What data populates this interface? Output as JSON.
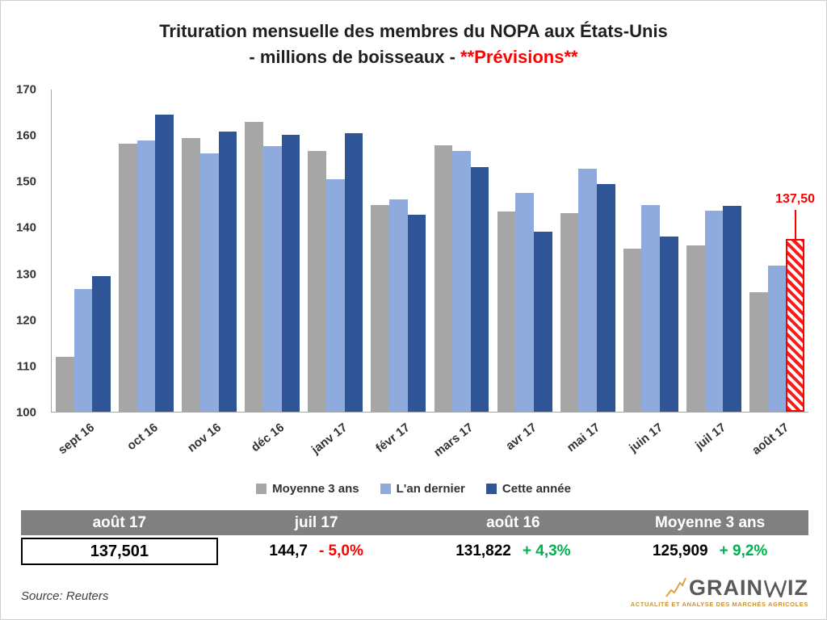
{
  "title": {
    "line1": "Trituration mensuelle des membres du NOPA aux États-Unis",
    "line2_prefix": "- millions de boisseaux - ",
    "line2_highlight": "**Prévisions**",
    "highlight_color": "#ff0000"
  },
  "chart_data": {
    "type": "bar",
    "title": "Trituration mensuelle des membres du NOPA aux États-Unis - millions de boisseaux - **Prévisions**",
    "categories": [
      "sept 16",
      "oct 16",
      "nov 16",
      "déc 16",
      "janv 17",
      "févr 17",
      "mars 17",
      "avr 17",
      "mai 17",
      "juin 17",
      "juil 17",
      "août 17"
    ],
    "series": [
      {
        "name": "Moyenne 3 ans",
        "color": "#a6a6a6",
        "values": [
          111.9,
          158.2,
          159.4,
          162.9,
          156.6,
          145.0,
          157.9,
          143.5,
          143.2,
          135.4,
          136.1,
          125.9
        ]
      },
      {
        "name": "L'an dernier",
        "color": "#8faadc",
        "values": [
          126.7,
          158.9,
          156.1,
          157.7,
          150.5,
          146.2,
          156.7,
          147.6,
          152.8,
          145.0,
          143.6,
          131.8
        ]
      },
      {
        "name": "Cette année",
        "color": "#2f5597",
        "values": [
          129.4,
          164.6,
          160.8,
          160.2,
          160.6,
          142.8,
          153.1,
          139.1,
          149.4,
          138.1,
          144.7,
          137.5
        ]
      }
    ],
    "forecast": {
      "series": "Cette année",
      "category": "août 17",
      "label": "137,50",
      "color": "#ff0000"
    },
    "ylim": [
      100,
      170
    ],
    "yticks": [
      100,
      110,
      120,
      130,
      140,
      150,
      160,
      170
    ],
    "grid": false,
    "legend_position": "bottom"
  },
  "summary_table": {
    "header_bg": "#808080",
    "columns": [
      {
        "header": "août 17",
        "value": "137,501",
        "change": "",
        "change_color": "",
        "boxed": true
      },
      {
        "header": "juil 17",
        "value": "144,7",
        "change": "- 5,0%",
        "change_color": "#ff0000",
        "boxed": false
      },
      {
        "header": "août 16",
        "value": "131,822",
        "change": "+ 4,3%",
        "change_color": "#00b050",
        "boxed": false
      },
      {
        "header": "Moyenne 3 ans",
        "value": "125,909",
        "change": "+ 9,2%",
        "change_color": "#00b050",
        "boxed": false
      }
    ]
  },
  "footer": {
    "source": "Source: Reuters",
    "logo_text_1": "GRAIN",
    "logo_text_2": "IZ",
    "logo_subtitle": "ACTUALITÉ ET ANALYSE DES MARCHÉS AGRICOLES"
  }
}
